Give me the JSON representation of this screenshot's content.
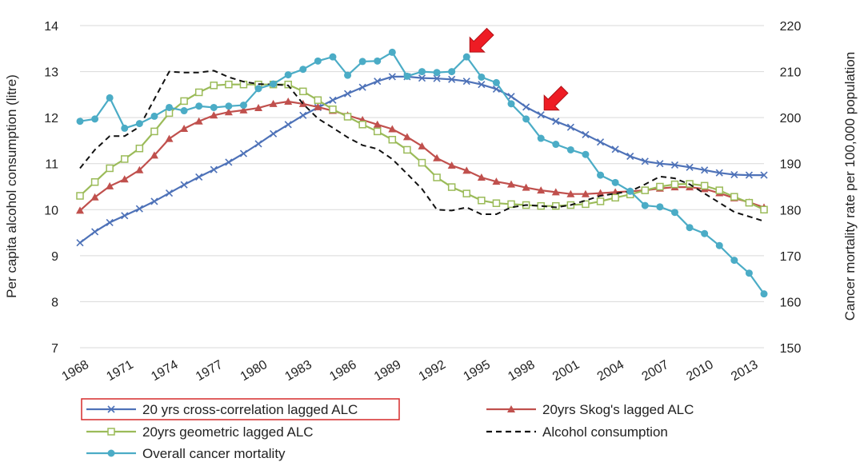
{
  "chart_data": {
    "type": "line",
    "title": "",
    "ylabel": "Per capita alcohol consumption (litre)",
    "y2label": "Cancer mortality rate per 100,000 population",
    "ylim": [
      7,
      14
    ],
    "y2lim": [
      150,
      220
    ],
    "xlim": [
      1968,
      2014
    ],
    "grid": "horizontal",
    "legend_position": "bottom",
    "x_ticks": [
      "1968",
      "1971",
      "1974",
      "1977",
      "1980",
      "1983",
      "1986",
      "1989",
      "1992",
      "1995",
      "1998",
      "2001",
      "2004",
      "2007",
      "2010",
      "2013"
    ],
    "y_ticks": [
      "7",
      "8",
      "9",
      "10",
      "11",
      "12",
      "13",
      "14"
    ],
    "y2_ticks": [
      "150",
      "160",
      "170",
      "180",
      "190",
      "200",
      "210",
      "220"
    ],
    "x": [
      1968,
      1969,
      1970,
      1971,
      1972,
      1973,
      1974,
      1975,
      1976,
      1977,
      1978,
      1979,
      1980,
      1981,
      1982,
      1983,
      1984,
      1985,
      1986,
      1987,
      1988,
      1989,
      1990,
      1991,
      1992,
      1993,
      1994,
      1995,
      1996,
      1997,
      1998,
      1999,
      2000,
      2001,
      2002,
      2003,
      2004,
      2005,
      2006,
      2007,
      2008,
      2009,
      2010,
      2011,
      2012,
      2013,
      2014
    ],
    "series": [
      {
        "name": "20 yrs cross-correlation lagged ALC",
        "axis": "left",
        "color": "#4e72b8",
        "marker": "x",
        "dash": false,
        "highlighted": true,
        "values": [
          9.28,
          9.52,
          9.72,
          9.87,
          10.02,
          10.18,
          10.36,
          10.54,
          10.71,
          10.87,
          11.03,
          11.22,
          11.43,
          11.65,
          11.85,
          12.05,
          12.22,
          12.38,
          12.52,
          12.66,
          12.79,
          12.89,
          12.89,
          12.86,
          12.85,
          12.83,
          12.79,
          12.72,
          12.62,
          12.46,
          12.23,
          12.06,
          11.92,
          11.79,
          11.63,
          11.47,
          11.31,
          11.16,
          11.05,
          11.0,
          10.97,
          10.92,
          10.86,
          10.8,
          10.76,
          10.75,
          10.75
        ]
      },
      {
        "name": "20yrs Skog's lagged ALC",
        "axis": "left",
        "color": "#c0504d",
        "marker": "triangle",
        "dash": false,
        "values": [
          9.98,
          10.27,
          10.51,
          10.66,
          10.86,
          11.18,
          11.54,
          11.76,
          11.92,
          12.05,
          12.12,
          12.16,
          12.21,
          12.3,
          12.35,
          12.3,
          12.23,
          12.15,
          12.05,
          11.95,
          11.85,
          11.75,
          11.58,
          11.38,
          11.12,
          10.96,
          10.85,
          10.7,
          10.61,
          10.55,
          10.48,
          10.42,
          10.38,
          10.34,
          10.34,
          10.36,
          10.38,
          10.4,
          10.42,
          10.46,
          10.49,
          10.49,
          10.45,
          10.36,
          10.25,
          10.16,
          10.05
        ]
      },
      {
        "name": "20yrs geometric lagged ALC",
        "axis": "left",
        "color": "#9bbb59",
        "marker": "square",
        "dash": false,
        "values": [
          10.3,
          10.6,
          10.9,
          11.1,
          11.33,
          11.7,
          12.1,
          12.36,
          12.55,
          12.7,
          12.72,
          12.72,
          12.72,
          12.72,
          12.72,
          12.57,
          12.38,
          12.18,
          12.02,
          11.85,
          11.7,
          11.52,
          11.3,
          11.02,
          10.7,
          10.49,
          10.35,
          10.2,
          10.14,
          10.12,
          10.1,
          10.08,
          10.08,
          10.1,
          10.12,
          10.18,
          10.26,
          10.33,
          10.42,
          10.5,
          10.55,
          10.56,
          10.52,
          10.42,
          10.28,
          10.15,
          10.0
        ]
      },
      {
        "name": "Alcohol consumption",
        "axis": "left",
        "color": "#111111",
        "marker": "none",
        "dash": true,
        "values": [
          10.9,
          11.3,
          11.6,
          11.6,
          11.8,
          12.4,
          13.0,
          12.98,
          12.98,
          13.02,
          12.88,
          12.78,
          12.73,
          12.72,
          12.7,
          12.3,
          11.98,
          11.78,
          11.57,
          11.4,
          11.32,
          11.1,
          10.78,
          10.45,
          10.0,
          9.98,
          10.05,
          9.9,
          9.9,
          10.05,
          10.1,
          10.08,
          10.05,
          10.1,
          10.2,
          10.3,
          10.35,
          10.4,
          10.55,
          10.72,
          10.68,
          10.55,
          10.35,
          10.15,
          9.95,
          9.85,
          9.75
        ]
      },
      {
        "name": "Overall cancer mortality",
        "axis": "right",
        "color": "#4bacc6",
        "marker": "circle",
        "dash": false,
        "values": [
          199.2,
          199.7,
          204.3,
          197.7,
          198.7,
          200.3,
          202.2,
          201.5,
          202.5,
          202.2,
          202.5,
          202.7,
          206.3,
          207.3,
          209.3,
          210.5,
          212.3,
          213.2,
          209.2,
          212.2,
          212.3,
          214.2,
          209.0,
          210.0,
          209.8,
          210.0,
          213.2,
          208.8,
          207.6,
          203.0,
          199.7,
          195.5,
          194.2,
          193.0,
          192.0,
          187.5,
          185.9,
          184.0,
          180.9,
          180.6,
          179.4,
          176.1,
          174.8,
          172.2,
          169.0,
          166.2,
          161.7
        ]
      }
    ],
    "annotations": [
      {
        "type": "arrow",
        "color": "#ee1c24",
        "points_to_year": 1994,
        "points_to_series": "Overall cancer mortality"
      },
      {
        "type": "arrow",
        "color": "#ee1c24",
        "points_to_year": 1999,
        "points_to_series": "20 yrs cross-correlation lagged ALC"
      }
    ]
  }
}
